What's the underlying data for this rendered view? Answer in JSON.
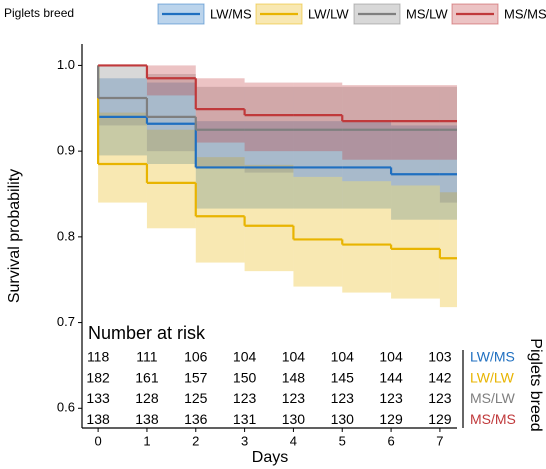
{
  "chart_data": {
    "type": "survival-step",
    "legend_title": "Piglets breed",
    "y_label": "Survival probability",
    "x_label": "Days",
    "risk_title": "Number at risk",
    "x": [
      0,
      0,
      1,
      2,
      3,
      4,
      5,
      6,
      7
    ],
    "xlim": [
      -0.33,
      7.35
    ],
    "xticks": [
      0,
      1,
      2,
      3,
      4,
      5,
      6,
      7
    ],
    "ylim": [
      0.577,
      1.025
    ],
    "yticks": [
      {
        "value": 1,
        "label": "1.0"
      },
      0.9,
      0.8,
      0.7,
      0.6
    ],
    "band_opacity": 0.3,
    "series": [
      {
        "name": "LW/MS",
        "color": "#1f6fc0",
        "values": [
          1,
          0.94,
          0.932,
          0.881,
          0.881,
          0.881,
          0.881,
          0.873,
          0.873
        ],
        "upper": [
          1,
          0.985,
          0.98,
          0.935,
          0.935,
          0.935,
          0.935,
          0.93,
          0.93
        ],
        "lower": [
          1,
          0.895,
          0.885,
          0.833,
          0.833,
          0.833,
          0.833,
          0.82,
          0.82
        ],
        "at_risk": [
          118,
          111,
          106,
          104,
          104,
          104,
          104,
          103
        ]
      },
      {
        "name": "LW/LW",
        "color": "#e8b400",
        "values": [
          1,
          0.885,
          0.863,
          0.824,
          0.813,
          0.797,
          0.791,
          0.786,
          0.775
        ],
        "upper": [
          1,
          0.945,
          0.925,
          0.893,
          0.884,
          0.87,
          0.865,
          0.86,
          0.852
        ],
        "lower": [
          1,
          0.84,
          0.81,
          0.77,
          0.76,
          0.742,
          0.735,
          0.728,
          0.718
        ],
        "at_risk": [
          182,
          161,
          157,
          150,
          148,
          145,
          144,
          142
        ]
      },
      {
        "name": "MS/LW",
        "color": "#7f7f7f",
        "values": [
          1,
          0.962,
          0.94,
          0.925,
          0.925,
          0.925,
          0.925,
          0.925,
          0.925
        ],
        "upper": [
          1,
          1,
          0.99,
          0.975,
          0.975,
          0.975,
          0.975,
          0.975,
          0.975
        ],
        "lower": [
          1,
          0.93,
          0.9,
          0.88,
          0.875,
          0.87,
          0.865,
          0.86,
          0.84
        ],
        "at_risk": [
          133,
          128,
          125,
          123,
          123,
          123,
          123,
          123
        ]
      },
      {
        "name": "MS/MS",
        "color": "#c0393b",
        "values": [
          1,
          1,
          0.985,
          0.949,
          0.942,
          0.942,
          0.935,
          0.935,
          0.935
        ],
        "upper": [
          1,
          1,
          1,
          0.985,
          0.98,
          0.98,
          0.977,
          0.977,
          0.977
        ],
        "lower": [
          1,
          1,
          0.965,
          0.91,
          0.9,
          0.9,
          0.89,
          0.89,
          0.89
        ],
        "at_risk": [
          138,
          138,
          136,
          131,
          130,
          130,
          129,
          129
        ]
      }
    ]
  }
}
